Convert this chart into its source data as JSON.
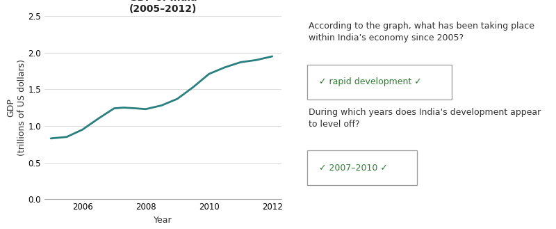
{
  "years": [
    2005,
    2005.5,
    2006,
    2006.5,
    2007,
    2007.3,
    2007.7,
    2008,
    2008.5,
    2009,
    2009.5,
    2010,
    2010.5,
    2011,
    2011.5,
    2012
  ],
  "gdp": [
    0.83,
    0.85,
    0.95,
    1.1,
    1.24,
    1.25,
    1.24,
    1.23,
    1.28,
    1.37,
    1.53,
    1.71,
    1.8,
    1.87,
    1.9,
    1.95
  ],
  "line_color": "#2a7f7f",
  "line_width": 2.0,
  "title_line1": "GDP of India",
  "title_line2": "(2005–2012)",
  "xlabel": "Year",
  "ylabel": "GDP\n(trillions of US dollars)",
  "xlim": [
    2004.8,
    2012.3
  ],
  "ylim": [
    0.0,
    2.5
  ],
  "yticks": [
    0.0,
    0.5,
    1.0,
    1.5,
    2.0,
    2.5
  ],
  "xticks": [
    2006,
    2008,
    2010,
    2012
  ],
  "bg_color": "#ffffff",
  "grid_color": "#dddddd",
  "question1": "According to the graph, what has been taking place\nwithin India's economy since 2005?",
  "answer1": "✓ rapid development ✓",
  "question2": "During which years does India's development appear\nto level off?",
  "answer2": "✓ 2007–2010 ✓",
  "answer_box_color": "#ffffff",
  "answer_border_color": "#999999",
  "answer_text_color": "#2e7d32",
  "question_text_color": "#333333",
  "title_fontsize": 10,
  "axis_label_fontsize": 9,
  "tick_fontsize": 8.5,
  "question_fontsize": 9,
  "answer_fontsize": 9
}
